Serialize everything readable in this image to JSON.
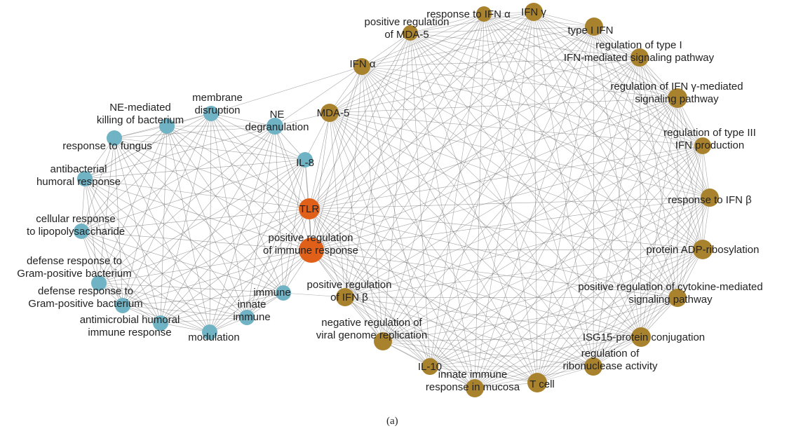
{
  "colors": {
    "background": "#ffffff",
    "edge": "#555555",
    "blue_node": "#6fb3c4",
    "gold_node": "#a9822e",
    "orange_node": "#e0601a",
    "label": "#222222"
  },
  "caption": "(a)",
  "nodes": [
    {
      "id": "tlr",
      "label": [
        "TLR"
      ],
      "color": "orange"
    },
    {
      "id": "pos_reg_immune",
      "label": [
        "positive regulation",
        "of immune response"
      ],
      "color": "orange"
    },
    {
      "id": "il8",
      "label": [
        "IL-8"
      ],
      "color": "blue"
    },
    {
      "id": "ne_degran",
      "label": [
        "NE",
        "degranulation"
      ],
      "color": "blue"
    },
    {
      "id": "membrane_disruption",
      "label": [
        "membrane",
        "disruption"
      ],
      "color": "blue"
    },
    {
      "id": "ne_killing",
      "label": [
        "NE-mediated",
        "killing of bacterium"
      ],
      "color": "blue"
    },
    {
      "id": "response_fungus",
      "label": [
        "response to fungus"
      ],
      "color": "blue"
    },
    {
      "id": "antibacterial",
      "label": [
        "antibacterial",
        "humoral response"
      ],
      "color": "blue"
    },
    {
      "id": "cell_resp_lps",
      "label": [
        "cellular response",
        "to lipopolysaccharide"
      ],
      "color": "blue"
    },
    {
      "id": "def_gram1",
      "label": [
        "defense response to",
        "Gram-positive bacterium"
      ],
      "color": "blue"
    },
    {
      "id": "def_gram2",
      "label": [
        "defense response to",
        "Gram-positive bacterium"
      ],
      "color": "blue"
    },
    {
      "id": "antimicrobial",
      "label": [
        "antimicrobial humoral",
        "immune response"
      ],
      "color": "blue"
    },
    {
      "id": "modulation",
      "label": [
        "modulation"
      ],
      "color": "blue"
    },
    {
      "id": "innate_immune",
      "label": [
        "innate",
        "immune"
      ],
      "color": "blue"
    },
    {
      "id": "immune",
      "label": [
        "immune"
      ],
      "color": "blue"
    },
    {
      "id": "mda5",
      "label": [
        "MDA-5"
      ],
      "color": "gold"
    },
    {
      "id": "ifn_alpha",
      "label": [
        "IFN α"
      ],
      "color": "gold"
    },
    {
      "id": "pos_reg_mda5",
      "label": [
        "positive regulation",
        "of MDA-5"
      ],
      "color": "gold"
    },
    {
      "id": "resp_ifn_alpha",
      "label": [
        "response to IFN α"
      ],
      "color": "gold"
    },
    {
      "id": "ifn_gamma",
      "label": [
        "IFN γ"
      ],
      "color": "gold"
    },
    {
      "id": "type1_ifn",
      "label": [
        "type I IFN"
      ],
      "color": "gold"
    },
    {
      "id": "reg_type1",
      "label": [
        "regulation of type I",
        "IFN-mediated signaling pathway"
      ],
      "color": "gold"
    },
    {
      "id": "reg_ifn_gamma",
      "label": [
        "regulation of IFN γ-mediated",
        "signaling pathway"
      ],
      "color": "gold"
    },
    {
      "id": "reg_type3",
      "label": [
        "regulation of type III",
        "IFN production"
      ],
      "color": "gold"
    },
    {
      "id": "resp_ifn_beta",
      "label": [
        "response to IFN β"
      ],
      "color": "gold"
    },
    {
      "id": "adp_ribos",
      "label": [
        "protein ADP-ribosylation"
      ],
      "color": "gold"
    },
    {
      "id": "pos_reg_cytokine",
      "label": [
        "positive regulation of cytokine-mediated",
        "signaling pathway"
      ],
      "color": "gold"
    },
    {
      "id": "isg15",
      "label": [
        "ISG15-protein conjugation"
      ],
      "color": "gold"
    },
    {
      "id": "reg_ribonuclease",
      "label": [
        "regulation of",
        "ribonuclease activity"
      ],
      "color": "gold"
    },
    {
      "id": "tcell",
      "label": [
        "T cell"
      ],
      "color": "gold"
    },
    {
      "id": "innate_mucosa",
      "label": [
        "innate immune",
        "response in mucosa"
      ],
      "color": "gold"
    },
    {
      "id": "il10",
      "label": [
        "IL-10"
      ],
      "color": "gold"
    },
    {
      "id": "neg_reg_viral",
      "label": [
        "negative regulation of",
        "viral genome replication"
      ],
      "color": "gold"
    },
    {
      "id": "pos_reg_ifn_beta",
      "label": [
        "positive regulation",
        "of IFN β"
      ],
      "color": "gold"
    }
  ]
}
